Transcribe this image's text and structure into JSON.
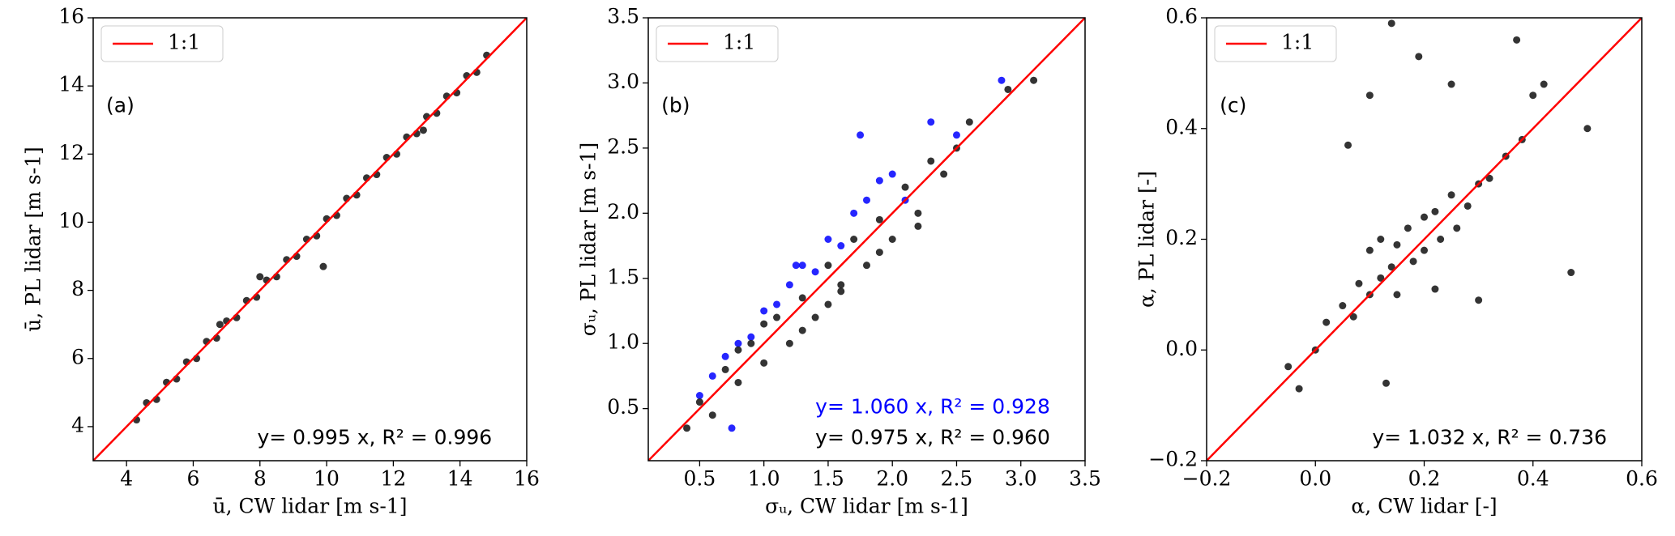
{
  "chart_data": [
    {
      "type": "scatter",
      "xlabel": "ū, CW lidar [m s-1]",
      "ylabel": "ū, PL lidar [m s-1]",
      "xlim": [
        3,
        16
      ],
      "ylim": [
        3,
        16
      ],
      "xticks": [
        4,
        6,
        8,
        10,
        12,
        14,
        16
      ],
      "yticks": [
        4,
        6,
        8,
        10,
        12,
        14,
        16
      ],
      "legend": "upper left",
      "annotations": [
        {
          "text": "(a)",
          "color": "#000000"
        },
        {
          "text": "y= 0.995 x,  R² =  0.996",
          "color": "#000000"
        }
      ],
      "series": [
        {
          "mode": "markers",
          "color": "#111111",
          "x": [
            4.3,
            4.6,
            4.9,
            5.2,
            5.5,
            5.8,
            6.1,
            6.4,
            6.7,
            7.0,
            7.3,
            7.6,
            7.9,
            8.2,
            8.5,
            8.8,
            9.1,
            9.4,
            9.7,
            10.0,
            10.3,
            10.6,
            10.9,
            11.2,
            11.5,
            11.8,
            12.1,
            12.4,
            12.7,
            13.0,
            13.3,
            13.6,
            13.9,
            14.2,
            14.5,
            14.8,
            9.9,
            8.0,
            12.9,
            6.8
          ],
          "values": [
            4.2,
            4.7,
            4.8,
            5.3,
            5.4,
            5.9,
            6.0,
            6.5,
            6.6,
            7.1,
            7.2,
            7.7,
            7.8,
            8.3,
            8.4,
            8.9,
            9.0,
            9.5,
            9.6,
            10.1,
            10.2,
            10.7,
            10.8,
            11.3,
            11.4,
            11.9,
            12.0,
            12.5,
            12.6,
            13.1,
            13.2,
            13.7,
            13.8,
            14.3,
            14.4,
            14.9,
            8.7,
            8.4,
            12.7,
            7.0
          ]
        },
        {
          "mode": "line",
          "name": "1:1",
          "color": "#ff0000",
          "x": [
            3,
            16
          ],
          "values": [
            3,
            16
          ]
        }
      ]
    },
    {
      "type": "scatter",
      "xlabel": "σᵤ, CW lidar [m s-1]",
      "ylabel": "σᵤ, PL lidar [m s-1]",
      "xlim": [
        0.1,
        3.5
      ],
      "ylim": [
        0.1,
        3.5
      ],
      "xticks": [
        0.5,
        {
          "value": 1,
          "label": "1.0"
        },
        1.5,
        {
          "value": 2,
          "label": "2.0"
        },
        2.5,
        {
          "value": 3,
          "label": "3.0"
        },
        3.5
      ],
      "yticks": [
        0.5,
        {
          "value": 1,
          "label": "1.0"
        },
        1.5,
        {
          "value": 2,
          "label": "2.0"
        },
        2.5,
        {
          "value": 3,
          "label": "3.0"
        },
        3.5
      ],
      "legend": "upper left",
      "annotations": [
        {
          "text": "(b)",
          "color": "#000000"
        },
        {
          "text": "y= 1.060 x,  R² =  0.928",
          "color": "#0000ff"
        },
        {
          "text": "y= 0.975 x,  R² =  0.960",
          "color": "#000000"
        }
      ],
      "series": [
        {
          "mode": "markers",
          "color": "#0000ff",
          "x": [
            0.5,
            0.6,
            0.7,
            0.8,
            0.9,
            1.0,
            1.1,
            1.2,
            1.3,
            1.4,
            1.5,
            1.6,
            1.7,
            1.8,
            1.9,
            2.0,
            2.1,
            2.3,
            2.5,
            2.85,
            0.75,
            1.25,
            1.75
          ],
          "values": [
            0.6,
            0.75,
            0.9,
            1.0,
            1.05,
            1.25,
            1.3,
            1.45,
            1.6,
            1.55,
            1.8,
            1.75,
            2.0,
            2.1,
            2.25,
            2.3,
            2.1,
            2.7,
            2.6,
            3.02,
            0.35,
            1.6,
            2.6
          ]
        },
        {
          "mode": "markers",
          "color": "#111111",
          "x": [
            0.4,
            0.5,
            0.6,
            0.7,
            0.8,
            0.9,
            1.0,
            1.1,
            1.2,
            1.3,
            1.4,
            1.5,
            1.6,
            1.7,
            1.8,
            1.9,
            2.0,
            2.1,
            2.2,
            2.3,
            2.4,
            2.5,
            2.6,
            2.9,
            3.1,
            1.0,
            1.3,
            1.6,
            1.9,
            2.2,
            0.8,
            1.5
          ],
          "values": [
            0.35,
            0.55,
            0.45,
            0.8,
            0.7,
            1.0,
            0.85,
            1.2,
            1.0,
            1.35,
            1.2,
            1.6,
            1.4,
            1.8,
            1.6,
            1.95,
            1.8,
            2.2,
            1.9,
            2.4,
            2.3,
            2.5,
            2.7,
            2.95,
            3.02,
            1.15,
            1.1,
            1.45,
            1.7,
            2.0,
            0.95,
            1.3
          ]
        },
        {
          "mode": "line",
          "name": "1:1",
          "color": "#ff0000",
          "x": [
            0.1,
            3.5
          ],
          "values": [
            0.1,
            3.5
          ]
        }
      ]
    },
    {
      "type": "scatter",
      "xlabel": "α, CW lidar [-]",
      "ylabel": "α, PL lidar [-]",
      "xlim": [
        -0.2,
        0.6
      ],
      "ylim": [
        -0.2,
        0.6
      ],
      "xticks": [
        {
          "value": -0.2,
          "label": "−0.2"
        },
        {
          "value": 0,
          "label": "0.0"
        },
        0.2,
        0.4,
        0.6
      ],
      "yticks": [
        {
          "value": -0.2,
          "label": "−0.2"
        },
        {
          "value": 0,
          "label": "0.0"
        },
        0.2,
        0.4,
        0.6
      ],
      "legend": "upper left",
      "annotations": [
        {
          "text": "(c)",
          "color": "#000000"
        },
        {
          "text": "y= 1.032 x,  R² =  0.736",
          "color": "#000000"
        }
      ],
      "series": [
        {
          "mode": "markers",
          "color": "#111111",
          "x": [
            -0.05,
            -0.03,
            0,
            0.02,
            0.05,
            0.07,
            0.08,
            0.1,
            0.1,
            0.12,
            0.12,
            0.14,
            0.15,
            0.15,
            0.17,
            0.18,
            0.2,
            0.2,
            0.22,
            0.23,
            0.25,
            0.26,
            0.28,
            0.3,
            0.32,
            0.35,
            0.38,
            0.4,
            0.42,
            0.47,
            0.5,
            0.14,
            0.19,
            0.37,
            0.1,
            0.06,
            0.3,
            0.25,
            0.13,
            0.22
          ],
          "values": [
            -0.03,
            -0.07,
            0.0,
            0.05,
            0.08,
            0.06,
            0.12,
            0.1,
            0.18,
            0.13,
            0.2,
            0.15,
            0.19,
            0.1,
            0.22,
            0.16,
            0.24,
            0.18,
            0.25,
            0.2,
            0.28,
            0.22,
            0.26,
            0.3,
            0.31,
            0.35,
            0.38,
            0.46,
            0.48,
            0.14,
            0.4,
            0.59,
            0.53,
            0.56,
            0.46,
            0.37,
            0.09,
            0.48,
            -0.06,
            0.11
          ]
        },
        {
          "mode": "line",
          "name": "1:1",
          "color": "#ff0000",
          "x": [
            -0.2,
            0.6
          ],
          "values": [
            -0.2,
            0.6
          ]
        }
      ]
    }
  ]
}
